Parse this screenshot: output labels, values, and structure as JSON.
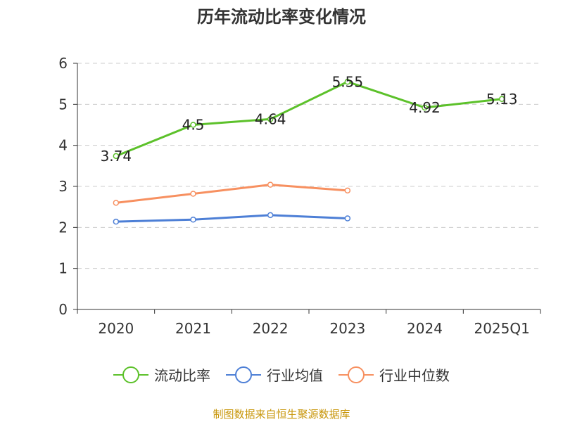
{
  "chart_data": {
    "type": "line",
    "title": "历年流动比率变化情况",
    "categories": [
      "2020",
      "2021",
      "2022",
      "2023",
      "2024",
      "2025Q1"
    ],
    "ylim": [
      0,
      6
    ],
    "yticks": [
      0,
      1,
      2,
      3,
      4,
      5,
      6
    ],
    "grid": true,
    "legend_position": "bottom",
    "series": [
      {
        "name": "流动比率",
        "color": "#5cc12a",
        "values": [
          3.74,
          4.5,
          4.64,
          5.55,
          4.92,
          5.13
        ],
        "labels": [
          "3.74",
          "4.5",
          "4.64",
          "5.55",
          "4.92",
          "5.13"
        ]
      },
      {
        "name": "行业均值",
        "color": "#4d7fd6",
        "values": [
          2.14,
          2.19,
          2.3,
          2.22,
          null,
          null
        ]
      },
      {
        "name": "行业中位数",
        "color": "#f79060",
        "values": [
          2.6,
          2.82,
          3.04,
          2.9,
          null,
          null
        ]
      }
    ]
  },
  "source": "制图数据来自恒生聚源数据库"
}
